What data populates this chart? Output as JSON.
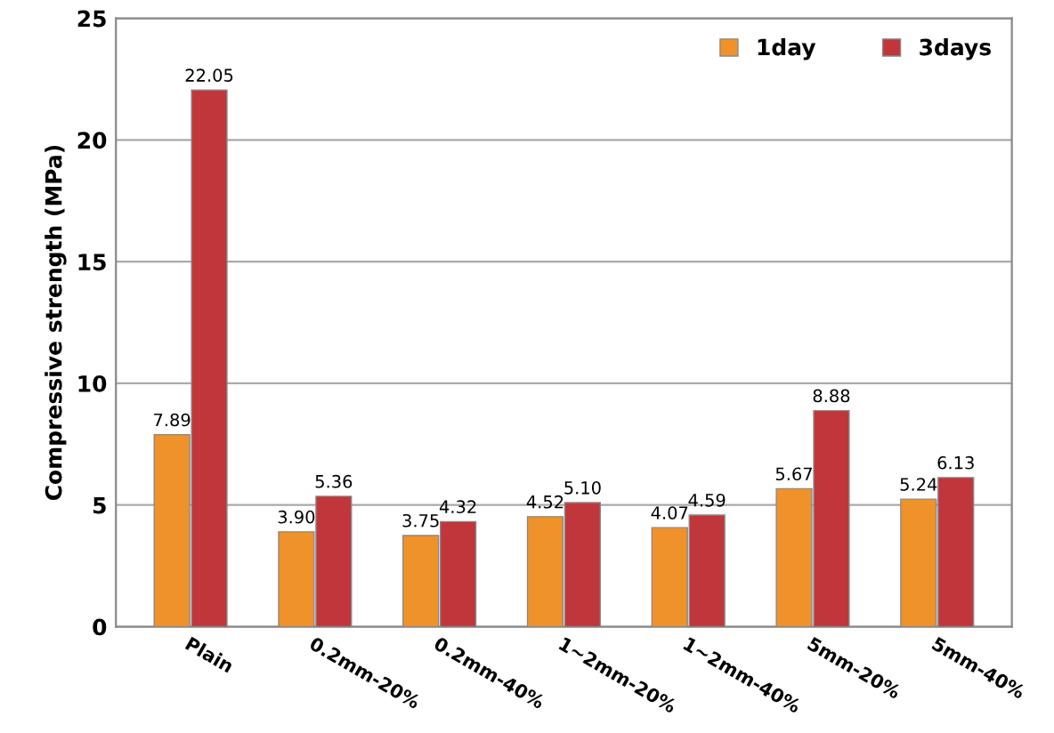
{
  "chart_data": {
    "type": "bar",
    "ylabel": "Compressive strength (MPa)",
    "categories": [
      "Plain",
      "0.2mm-20%",
      "0.2mm-40%",
      "1~2mm-20%",
      "1~2mm-40%",
      "5mm-20%",
      "5mm-40%"
    ],
    "series": [
      {
        "name": "1day",
        "color": "#f0922a",
        "values": [
          7.89,
          3.9,
          3.75,
          4.52,
          4.07,
          5.67,
          5.24
        ],
        "value_labels": [
          "7.89",
          "3.90",
          "3.75",
          "4.52",
          "4.07",
          "5.67",
          "5.24"
        ]
      },
      {
        "name": "3days",
        "color": "#c0363a",
        "values": [
          22.05,
          5.36,
          4.32,
          5.1,
          4.59,
          8.88,
          6.13
        ],
        "value_labels": [
          "22.05",
          "5.36",
          "4.32",
          "5.10",
          "4.59",
          "8.88",
          "6.13"
        ]
      }
    ],
    "ylim": [
      0,
      25
    ],
    "yticks": [
      0,
      5,
      10,
      15,
      20,
      25
    ],
    "grid": "y",
    "legend": "top right"
  }
}
